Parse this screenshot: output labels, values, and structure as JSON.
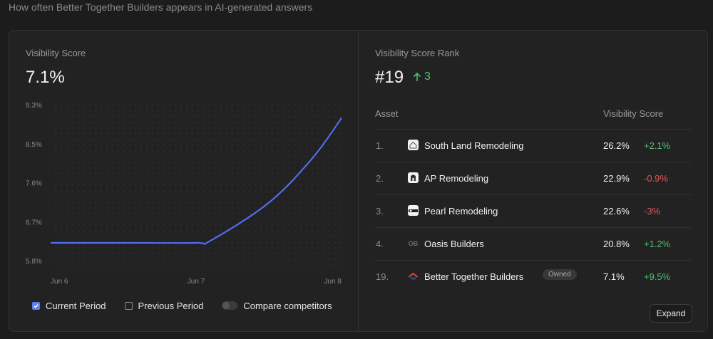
{
  "header": {
    "subtitle": "How often Better Together Builders appears in AI-generated answers"
  },
  "left_panel": {
    "label": "Visibility Score",
    "value": "7.1%",
    "legend": {
      "current": "Current Period",
      "previous": "Previous Period",
      "compare": "Compare competitors",
      "current_checked": true,
      "previous_checked": false,
      "compare_on": false
    }
  },
  "chart_data": {
    "type": "line",
    "x": [
      "Jun 6",
      "Jun 6",
      "Jun 7",
      "Jun 7",
      "Jun 7",
      "Jun 8",
      "Jun 8"
    ],
    "x_fraction": [
      0,
      0.25,
      0.5,
      0.55,
      0.75,
      0.9,
      1.0
    ],
    "series": [
      {
        "values": [
          6.2,
          6.2,
          6.2,
          6.25,
          7.1,
          8.1,
          9.0
        ],
        "color": "#4f6ef0"
      }
    ],
    "x_ticks": [
      "Jun 6",
      "Jun 7",
      "Jun 8"
    ],
    "y_ticks": [
      "9.3%",
      "8.5%",
      "7.6%",
      "6.7%",
      "5.8%"
    ],
    "ylim": [
      5.8,
      9.3
    ],
    "grid": "dotted"
  },
  "right_panel": {
    "label": "Visibility Score Rank",
    "rank": "#19",
    "rank_change": "3",
    "table": {
      "col_asset": "Asset",
      "col_score": "Visibility Score",
      "rows": [
        {
          "rank": "1.",
          "name": "South Land Remodeling",
          "score": "26.2%",
          "delta": "+2.1%",
          "trend": "pos"
        },
        {
          "rank": "2.",
          "name": "AP Remodeling",
          "score": "22.9%",
          "delta": "-0.9%",
          "trend": "neg"
        },
        {
          "rank": "3.",
          "name": "Pearl Remodeling",
          "score": "22.6%",
          "delta": "-3%",
          "trend": "neg"
        },
        {
          "rank": "4.",
          "name": "Oasis Builders",
          "score": "20.8%",
          "delta": "+1.2%",
          "trend": "pos",
          "initials": "OB"
        },
        {
          "rank": "19.",
          "name": "Better Together Builders",
          "score": "7.1%",
          "delta": "+9.5%",
          "trend": "pos",
          "badge": "Owned"
        }
      ]
    },
    "expand_label": "Expand"
  },
  "colors": {
    "accent": "#5b7ff0",
    "positive": "#4ec26a",
    "negative": "#e05a55",
    "line": "#4f6ef0"
  }
}
